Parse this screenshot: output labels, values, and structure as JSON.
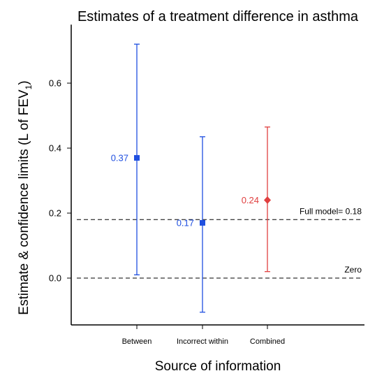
{
  "chart_data": {
    "type": "scatter",
    "title": "Estimates of a treatment difference in asthma",
    "xlabel": "Source of information",
    "ylabel_main": "Estimate & confidence limits (L of FEV",
    "ylabel_sub": "1",
    "ylabel_end": ")",
    "ylim": [
      -0.14,
      0.78
    ],
    "yticks": [
      0.0,
      0.2,
      0.4,
      0.6
    ],
    "ytick_labels": [
      "0.0",
      "0.2",
      "0.4",
      "0.6"
    ],
    "categories": [
      "Between",
      "Incorrect within",
      "Combined"
    ],
    "points": [
      {
        "category": "Between",
        "estimate": 0.37,
        "label": "0.37",
        "lower": 0.01,
        "upper": 0.72,
        "color": "#1f4fe0",
        "marker": "square"
      },
      {
        "category": "Incorrect within",
        "estimate": 0.17,
        "label": "0.17",
        "lower": -0.105,
        "upper": 0.435,
        "color": "#1f4fe0",
        "marker": "square"
      },
      {
        "category": "Combined",
        "estimate": 0.24,
        "label": "0.24",
        "lower": 0.02,
        "upper": 0.465,
        "color": "#e04040",
        "marker": "diamond"
      }
    ],
    "reference_lines": [
      {
        "label": "Full model= 0.18",
        "value": 0.18,
        "style": "dashed"
      },
      {
        "label": "Zero",
        "value": 0.0,
        "style": "dashed"
      }
    ]
  }
}
